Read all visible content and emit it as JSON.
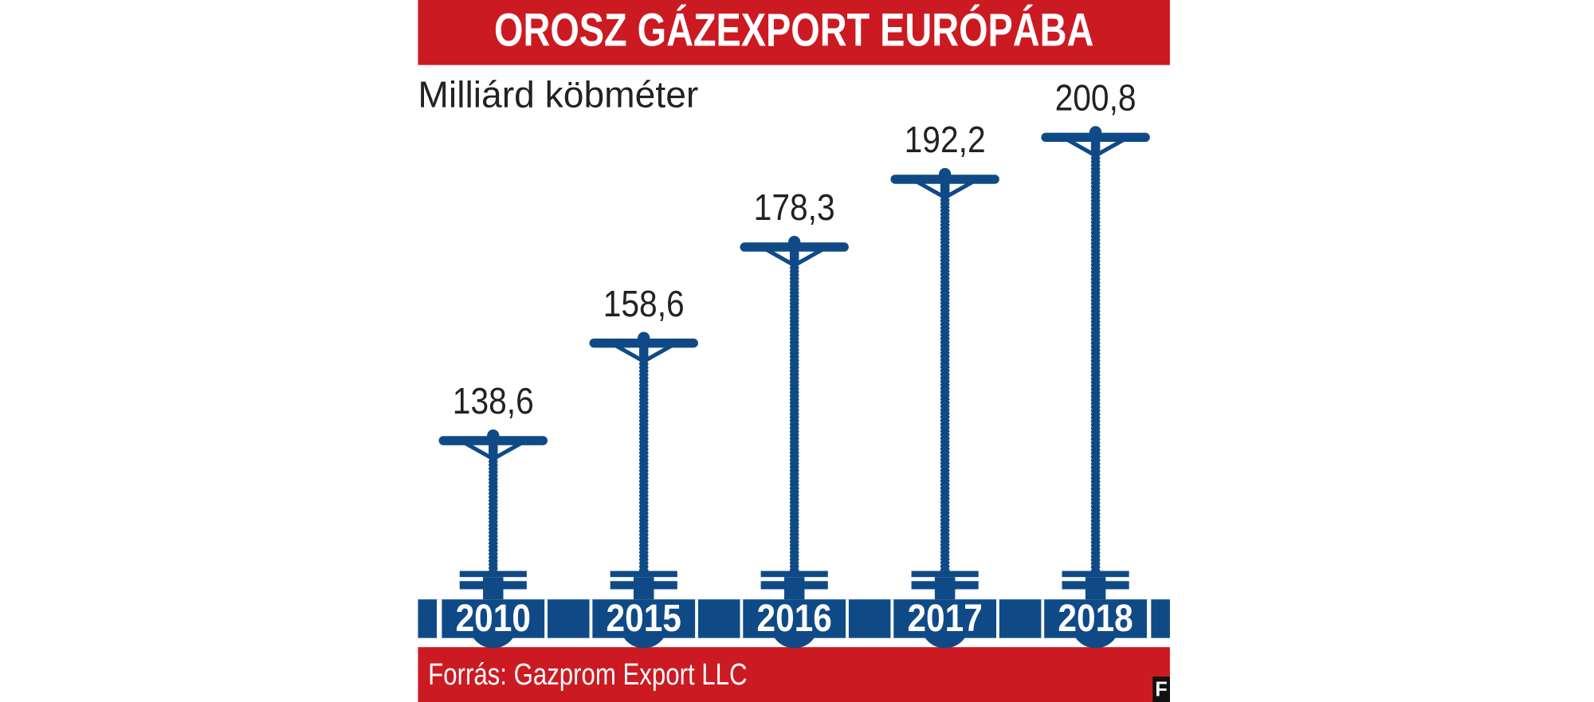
{
  "chart_data": {
    "type": "valve",
    "title": "OROSZ GÁZEXPORT EURÓPÁBA",
    "subtitle": "Milliárd köbméter",
    "source": "Forrás: Gazprom Export LLC",
    "logo": "F",
    "categories": [
      "2010",
      "2015",
      "2016",
      "2017",
      "2018"
    ],
    "values": [
      138.6,
      158.6,
      178.3,
      192.2,
      200.8
    ],
    "value_labels": [
      "138,6",
      "158,6",
      "178,3",
      "192,2",
      "200,8"
    ],
    "color": "#0f4a86",
    "ylim": [
      110,
      210
    ]
  }
}
